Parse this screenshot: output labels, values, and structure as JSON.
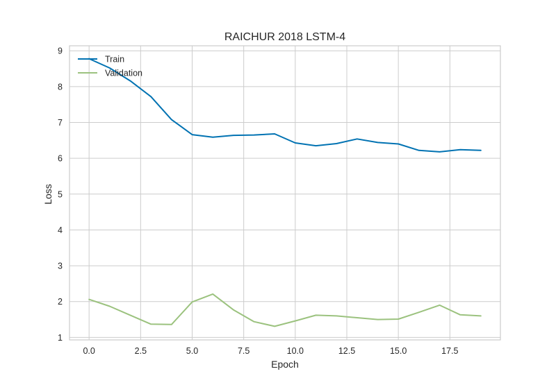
{
  "chart_data": {
    "type": "line",
    "title": "RAICHUR 2018 LSTM-4",
    "xlabel": "Epoch",
    "ylabel": "Loss",
    "xlim": [
      -0.95,
      19.95
    ],
    "ylim": [
      0.93,
      9.14
    ],
    "xticks": [
      0.0,
      2.5,
      5.0,
      7.5,
      10.0,
      12.5,
      15.0,
      17.5
    ],
    "xtick_labels": [
      "0.0",
      "2.5",
      "5.0",
      "7.5",
      "10.0",
      "12.5",
      "15.0",
      "17.5"
    ],
    "yticks": [
      1,
      2,
      3,
      4,
      5,
      6,
      7,
      8,
      9
    ],
    "ytick_labels": [
      "1",
      "2",
      "3",
      "4",
      "5",
      "6",
      "7",
      "8",
      "9"
    ],
    "grid": true,
    "legend_position": "top-left",
    "x": [
      0,
      1,
      2,
      3,
      4,
      5,
      6,
      7,
      8,
      9,
      10,
      11,
      12,
      13,
      14,
      15,
      16,
      17,
      18,
      19
    ],
    "series": [
      {
        "name": "Train",
        "color": "#0072b2",
        "values": [
          8.78,
          8.52,
          8.16,
          7.72,
          7.08,
          6.66,
          6.59,
          6.64,
          6.65,
          6.68,
          6.43,
          6.35,
          6.41,
          6.54,
          6.44,
          6.4,
          6.22,
          6.18,
          6.24,
          6.22
        ]
      },
      {
        "name": "Validation",
        "color": "#9bc27e",
        "values": [
          2.06,
          1.87,
          1.62,
          1.37,
          1.36,
          1.99,
          2.21,
          1.77,
          1.44,
          1.31,
          1.46,
          1.62,
          1.6,
          1.55,
          1.5,
          1.51,
          1.7,
          1.9,
          1.63,
          1.6
        ]
      }
    ]
  }
}
